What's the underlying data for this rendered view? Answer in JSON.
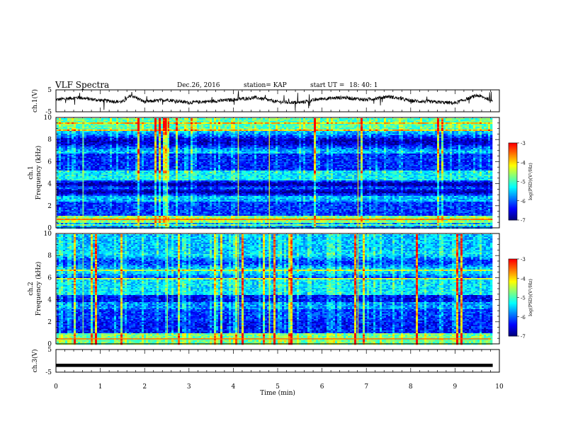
{
  "header": {
    "title": "VLF Spectra",
    "date": "Dec.26, 2016",
    "station": "station= KAP",
    "start_label": "start  UT =",
    "start_time": "18: 40: 1"
  },
  "colors": {
    "colormap": [
      "#00007f",
      "#0000ff",
      "#007fff",
      "#00ffff",
      "#7fff7f",
      "#ffff00",
      "#ff7f00",
      "#ff0000",
      "#ffffff"
    ],
    "trace": "#000000"
  },
  "chart_data": [
    {
      "type": "line",
      "name": "ch1-voltage",
      "ylabel": "ch.1(V)",
      "ylim": [
        -5,
        5
      ],
      "yticks": [
        "5",
        "-5"
      ],
      "x_range": [
        0,
        10
      ],
      "data_end_min": 9.85,
      "description_points": {
        "x": [
          0,
          0.5,
          1,
          1.5,
          1.7,
          2,
          2.5,
          3,
          3.5,
          4,
          4.5,
          5,
          5.5,
          6,
          6.5,
          7,
          7.5,
          8,
          8.5,
          9,
          9.5,
          9.8
        ],
        "y": [
          0.5,
          1.5,
          0.2,
          -0.5,
          2.5,
          -0.5,
          0.5,
          -0.8,
          -0.2,
          0.5,
          1.5,
          -0.5,
          -0.8,
          1,
          1.5,
          0.5,
          2,
          0,
          -0.5,
          -1,
          2.5,
          0.5
        ]
      }
    },
    {
      "type": "heatmap",
      "name": "ch1-spectrogram",
      "ylabel": "ch.1\nFrequency (kHz)",
      "ylim": [
        0,
        10
      ],
      "yticks": [
        "0",
        "2",
        "4",
        "6",
        "8",
        "10"
      ],
      "x_range": [
        0,
        10
      ],
      "colorbar": {
        "label": "log(PSD)(V²/Hz)",
        "range": [
          -7,
          -3
        ],
        "ticks": [
          "-3",
          "-4",
          "-5",
          "-6",
          "-7"
        ]
      }
    },
    {
      "type": "heatmap",
      "name": "ch2-spectrogram",
      "ylabel": "ch.2\nFrequency (kHz)",
      "ylim": [
        0,
        10
      ],
      "yticks": [
        "0",
        "2",
        "4",
        "6",
        "8",
        "10"
      ],
      "x_range": [
        0,
        10
      ],
      "colorbar": {
        "label": "log(PSD)(V²/Hz)",
        "range": [
          -7,
          -3
        ],
        "ticks": [
          "-3",
          "-4",
          "-5",
          "-6",
          "-7"
        ]
      }
    },
    {
      "type": "line",
      "name": "ch3-voltage",
      "ylabel": "ch.3(V)",
      "ylim": [
        -5,
        5
      ],
      "yticks": [
        "5",
        "-5"
      ],
      "x_range": [
        0,
        10
      ],
      "x": [
        0,
        9.85
      ],
      "y": [
        -2,
        -2
      ]
    }
  ],
  "xaxis": {
    "label": "Time (min)",
    "ticks": [
      "0",
      "1",
      "2",
      "3",
      "4",
      "5",
      "6",
      "7",
      "8",
      "9",
      "10"
    ]
  }
}
